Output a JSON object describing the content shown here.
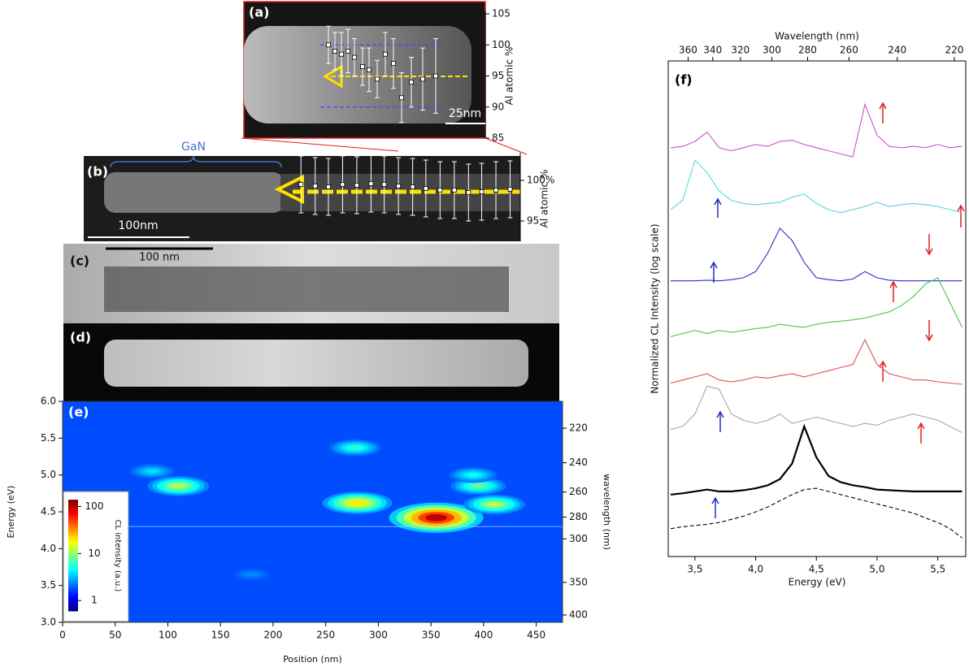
{
  "chart_data": [
    {
      "type": "errorbar",
      "label": "(a)",
      "scale_bar": "25nm",
      "ylabel": "Al atomic %",
      "xlim": [
        0,
        148.5
      ],
      "ylim": [
        85,
        105
      ],
      "yticks": [
        85,
        90,
        95,
        100,
        105
      ],
      "hlines": [
        90,
        100
      ],
      "hline_color": "#3a4cff",
      "x": [
        52,
        56,
        60,
        64,
        68,
        73,
        77,
        82,
        87,
        92,
        97,
        103,
        110,
        118
      ],
      "values": [
        100,
        99,
        98.5,
        99,
        98,
        96.5,
        96,
        94.5,
        98.5,
        97,
        91.5,
        94,
        94.5,
        95
      ],
      "errors": [
        3,
        3,
        3.5,
        3.5,
        3,
        3,
        3.5,
        3,
        3.5,
        4,
        4,
        4,
        5,
        6
      ]
    },
    {
      "type": "errorbar",
      "label": "(b)",
      "scale_bar": "100nm",
      "annotation": "GaN",
      "ylabel": "Al atomic %",
      "xlim": [
        0,
        430
      ],
      "ylim": [
        92.5,
        103
      ],
      "yticks": [
        95,
        {
          "value": 100,
          "label": "100%"
        }
      ],
      "x": [
        214,
        228,
        241,
        255,
        269,
        283,
        296,
        310,
        324,
        337,
        351,
        365,
        379,
        392,
        406,
        420
      ],
      "values": [
        99.5,
        99.3,
        99.2,
        99.5,
        99.4,
        99.6,
        99.5,
        99.3,
        99.2,
        99,
        98.8,
        98.8,
        98.5,
        98.6,
        98.8,
        98.9
      ],
      "errors": [
        3.5,
        3.5,
        3.5,
        3.5,
        3.5,
        3.5,
        3.5,
        3.5,
        3.5,
        3.5,
        3.5,
        3.5,
        3.5,
        3.5,
        3.5,
        3.5
      ]
    },
    {
      "type": "heatmap",
      "label": "(e)",
      "xlabel": "Position (nm)",
      "ylabel": "Energy (eV)",
      "y2label": "wavelength (nm)",
      "xlim": [
        0,
        475
      ],
      "xticks": [
        0,
        50,
        100,
        150,
        200,
        250,
        300,
        350,
        400,
        450
      ],
      "ylim": [
        3,
        6
      ],
      "yticks": [
        {
          "value": 3,
          "label": "3.0"
        },
        3.5,
        {
          "value": 4,
          "label": "4.0"
        },
        4.5,
        {
          "value": 5,
          "label": "5.0"
        },
        5.5,
        {
          "value": 6,
          "label": "6.0"
        }
      ],
      "y2ticks": [
        220,
        240,
        260,
        280,
        300,
        350,
        400
      ],
      "colorbar_label": "CL intensity (a.u.)",
      "clim": [
        0.6,
        140
      ],
      "cticks": [
        1,
        10,
        100
      ],
      "series": [
        {
          "x": [
            355,
            280,
            110,
            85,
            395,
            390,
            278,
            410,
            180
          ],
          "y": [
            4.42,
            4.62,
            4.85,
            5.05,
            4.85,
            5.0,
            5.37,
            4.6,
            3.65
          ],
          "values": [
            100,
            20,
            12,
            4,
            8,
            5,
            6,
            12,
            2.5
          ]
        }
      ]
    },
    {
      "type": "line",
      "label": "(f)",
      "xlabel": "Energy (eV)",
      "x2label": "Wavelength (nm)",
      "ylabel": "Normalized CL Intensity (log scale)",
      "xlim": [
        3.28,
        5.73
      ],
      "xticks": [
        {
          "value": 3.5,
          "label": "3,5"
        },
        {
          "value": 4,
          "label": "4,0"
        },
        {
          "value": 4.5,
          "label": "4,5"
        },
        {
          "value": 5,
          "label": "5,0"
        },
        {
          "value": 5.5,
          "label": "5,5"
        }
      ],
      "x2ticks": [
        360,
        340,
        320,
        300,
        280,
        260,
        240,
        220
      ],
      "ylim": [
        0,
        8
      ],
      "x": [
        3.3,
        3.4,
        3.5,
        3.6,
        3.7,
        3.8,
        3.9,
        4.0,
        4.1,
        4.2,
        4.3,
        4.4,
        4.5,
        4.6,
        4.7,
        4.8,
        4.9,
        5.0,
        5.1,
        5.2,
        5.3,
        5.4,
        5.5,
        5.6,
        5.7
      ],
      "series": [
        {
          "color": "#d050d0",
          "values": [
            6.6,
            6.62,
            6.7,
            6.85,
            6.6,
            6.55,
            6.6,
            6.65,
            6.62,
            6.7,
            6.72,
            6.65,
            6.6,
            6.55,
            6.5,
            6.45,
            7.3,
            6.8,
            6.62,
            6.6,
            6.62,
            6.6,
            6.65,
            6.6,
            6.62
          ]
        },
        {
          "color": "#5cd4dc",
          "values": [
            5.6,
            5.75,
            6.4,
            6.2,
            5.9,
            5.75,
            5.7,
            5.68,
            5.7,
            5.72,
            5.8,
            5.85,
            5.7,
            5.6,
            5.55,
            5.6,
            5.65,
            5.72,
            5.65,
            5.68,
            5.7,
            5.68,
            5.65,
            5.6,
            5.55
          ]
        },
        {
          "color": "#2a2ad0",
          "values": [
            4.45,
            4.45,
            4.45,
            4.46,
            4.45,
            4.47,
            4.5,
            4.6,
            4.9,
            5.3,
            5.1,
            4.75,
            4.5,
            4.47,
            4.45,
            4.48,
            4.6,
            4.5,
            4.46,
            4.45,
            4.45,
            4.45,
            4.45,
            4.45,
            4.45
          ]
        },
        {
          "color": "#44c844",
          "values": [
            3.55,
            3.6,
            3.65,
            3.6,
            3.65,
            3.62,
            3.65,
            3.68,
            3.7,
            3.75,
            3.72,
            3.7,
            3.75,
            3.78,
            3.8,
            3.82,
            3.85,
            3.9,
            3.95,
            4.05,
            4.2,
            4.4,
            4.5,
            4.1,
            3.7
          ]
        },
        {
          "color": "#e05050",
          "values": [
            2.8,
            2.85,
            2.9,
            2.95,
            2.85,
            2.82,
            2.85,
            2.9,
            2.88,
            2.92,
            2.95,
            2.9,
            2.95,
            3.0,
            3.05,
            3.1,
            3.5,
            3.1,
            2.95,
            2.9,
            2.85,
            2.85,
            2.82,
            2.8,
            2.78
          ]
        },
        {
          "color": "#a8a8a8",
          "values": [
            2.05,
            2.1,
            2.3,
            2.75,
            2.7,
            2.3,
            2.2,
            2.15,
            2.2,
            2.3,
            2.15,
            2.2,
            2.25,
            2.2,
            2.15,
            2.1,
            2.15,
            2.12,
            2.2,
            2.25,
            2.3,
            2.25,
            2.2,
            2.1,
            2.0
          ]
        },
        {
          "color": "#000000",
          "width": 2.2,
          "values": [
            1.0,
            1.02,
            1.05,
            1.08,
            1.05,
            1.05,
            1.07,
            1.1,
            1.15,
            1.25,
            1.5,
            2.1,
            1.6,
            1.3,
            1.2,
            1.15,
            1.12,
            1.08,
            1.07,
            1.06,
            1.05,
            1.05,
            1.05,
            1.05,
            1.05
          ]
        },
        {
          "color": "#000000",
          "dash": true,
          "values": [
            0.45,
            0.48,
            0.5,
            0.52,
            0.55,
            0.6,
            0.65,
            0.72,
            0.8,
            0.9,
            1.0,
            1.08,
            1.1,
            1.05,
            1.0,
            0.95,
            0.9,
            0.85,
            0.8,
            0.75,
            0.7,
            0.62,
            0.55,
            0.45,
            0.3
          ]
        }
      ]
    }
  ],
  "images": {
    "c": {
      "label": "(c)",
      "scale_bar": "100 nm"
    },
    "d": {
      "label": "(d)"
    }
  }
}
